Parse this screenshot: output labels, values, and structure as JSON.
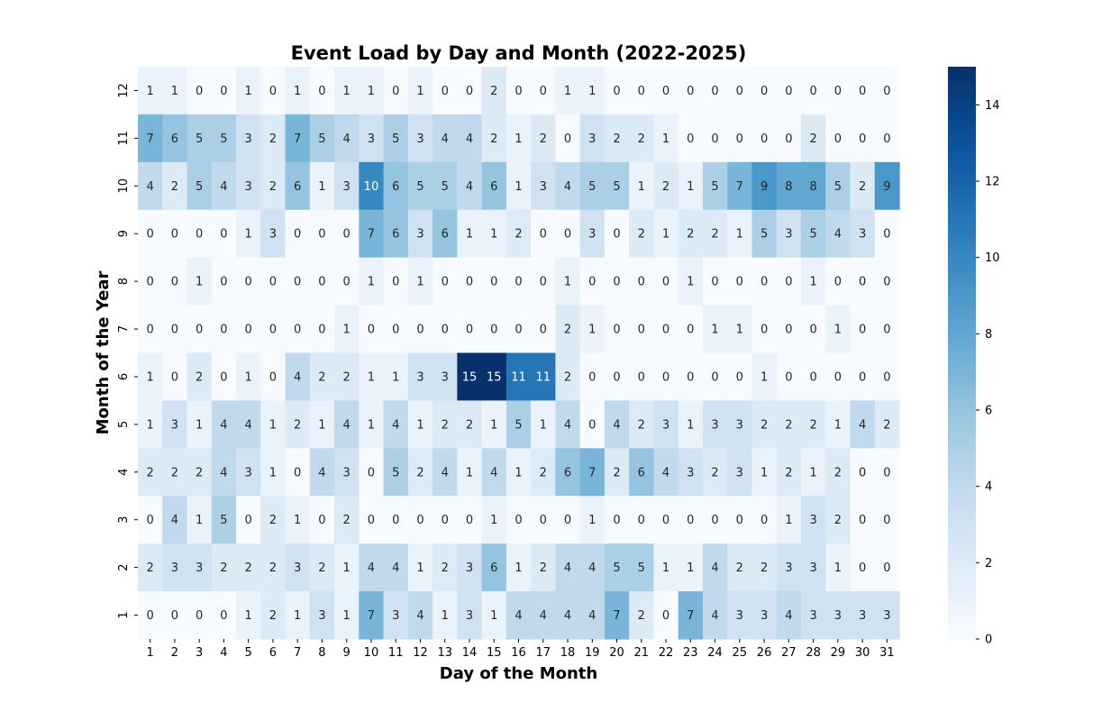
{
  "chart_data": {
    "type": "heatmap",
    "title": "Event Load by Day and Month (2022-2025)",
    "xlabel": "Day of the Month",
    "ylabel": "Month of the Year",
    "x_categories": [
      "1",
      "2",
      "3",
      "4",
      "5",
      "6",
      "7",
      "8",
      "9",
      "10",
      "11",
      "12",
      "13",
      "14",
      "15",
      "16",
      "17",
      "18",
      "19",
      "20",
      "21",
      "22",
      "23",
      "24",
      "25",
      "26",
      "27",
      "28",
      "29",
      "30",
      "31"
    ],
    "y_categories": [
      "12",
      "11",
      "10",
      "9",
      "8",
      "7",
      "6",
      "5",
      "4",
      "3",
      "2",
      "1"
    ],
    "values": [
      [
        1,
        1,
        0,
        0,
        1,
        0,
        1,
        0,
        1,
        1,
        0,
        1,
        0,
        0,
        2,
        0,
        0,
        1,
        1,
        0,
        0,
        0,
        0,
        0,
        0,
        0,
        0,
        0,
        0,
        0,
        0
      ],
      [
        7,
        6,
        5,
        5,
        3,
        2,
        7,
        5,
        4,
        3,
        5,
        3,
        4,
        4,
        2,
        1,
        2,
        0,
        3,
        2,
        2,
        1,
        0,
        0,
        0,
        0,
        0,
        2,
        0,
        0,
        0
      ],
      [
        4,
        2,
        5,
        4,
        3,
        2,
        6,
        1,
        3,
        10,
        6,
        5,
        5,
        4,
        6,
        1,
        3,
        4,
        5,
        5,
        1,
        2,
        1,
        5,
        7,
        9,
        8,
        8,
        5,
        2,
        9
      ],
      [
        0,
        0,
        0,
        0,
        1,
        3,
        0,
        0,
        0,
        7,
        6,
        3,
        6,
        1,
        1,
        2,
        0,
        0,
        3,
        0,
        2,
        1,
        2,
        2,
        1,
        5,
        3,
        5,
        4,
        3,
        0
      ],
      [
        0,
        0,
        1,
        0,
        0,
        0,
        0,
        0,
        0,
        1,
        0,
        1,
        0,
        0,
        0,
        0,
        0,
        1,
        0,
        0,
        0,
        0,
        1,
        0,
        0,
        0,
        0,
        1,
        0,
        0,
        0
      ],
      [
        0,
        0,
        0,
        0,
        0,
        0,
        0,
        0,
        1,
        0,
        0,
        0,
        0,
        0,
        0,
        0,
        0,
        2,
        1,
        0,
        0,
        0,
        0,
        1,
        1,
        0,
        0,
        0,
        1,
        0,
        0
      ],
      [
        1,
        0,
        2,
        0,
        1,
        0,
        4,
        2,
        2,
        1,
        1,
        3,
        3,
        15,
        15,
        11,
        11,
        2,
        0,
        0,
        0,
        0,
        0,
        0,
        0,
        1,
        0,
        0,
        0,
        0,
        0
      ],
      [
        1,
        3,
        1,
        4,
        4,
        1,
        2,
        1,
        4,
        1,
        4,
        1,
        2,
        2,
        1,
        5,
        1,
        4,
        0,
        4,
        2,
        3,
        1,
        3,
        3,
        2,
        2,
        2,
        1,
        4,
        2
      ],
      [
        2,
        2,
        2,
        4,
        3,
        1,
        0,
        4,
        3,
        0,
        5,
        2,
        4,
        1,
        4,
        1,
        2,
        6,
        7,
        2,
        6,
        4,
        3,
        2,
        3,
        1,
        2,
        1,
        2,
        0,
        0
      ],
      [
        0,
        4,
        1,
        5,
        0,
        2,
        1,
        0,
        2,
        0,
        0,
        0,
        0,
        0,
        1,
        0,
        0,
        0,
        1,
        0,
        0,
        0,
        0,
        0,
        0,
        0,
        1,
        3,
        2,
        0,
        0
      ],
      [
        2,
        3,
        3,
        2,
        2,
        2,
        3,
        2,
        1,
        4,
        4,
        1,
        2,
        3,
        6,
        1,
        2,
        4,
        4,
        5,
        5,
        1,
        1,
        4,
        2,
        2,
        3,
        3,
        1,
        0,
        0
      ],
      [
        0,
        0,
        0,
        0,
        1,
        2,
        1,
        3,
        1,
        7,
        3,
        4,
        1,
        3,
        1,
        4,
        4,
        4,
        4,
        7,
        2,
        0,
        7,
        4,
        3,
        3,
        4,
        3,
        3,
        3,
        3
      ]
    ],
    "colorbar": {
      "range": [
        0,
        15
      ],
      "ticks": [
        "0",
        "2",
        "4",
        "6",
        "8",
        "10",
        "12",
        "14"
      ],
      "colormap": "Blues",
      "low_color": "#f7fbff",
      "high_color": "#08306b"
    }
  }
}
